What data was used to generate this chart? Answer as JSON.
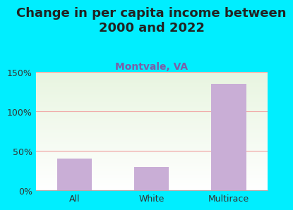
{
  "title": "Change in per capita income between\n2000 and 2022",
  "subtitle": "Montvale, VA",
  "categories": [
    "All",
    "White",
    "Multirace"
  ],
  "values": [
    40,
    30,
    135
  ],
  "bar_color": "#c9aed6",
  "title_fontsize": 13,
  "subtitle_fontsize": 10,
  "subtitle_color": "#7b5ea7",
  "tick_label_fontsize": 9,
  "ylim": [
    0,
    150
  ],
  "yticks": [
    0,
    50,
    100,
    150
  ],
  "ytick_labels": [
    "0%",
    "50%",
    "100%",
    "150%"
  ],
  "background_outer": "#00eeff",
  "background_inner_top": "#e8f5e0",
  "background_inner_bottom": "#ffffff",
  "gridline_color": "#f0a0a0",
  "bar_width": 0.45
}
